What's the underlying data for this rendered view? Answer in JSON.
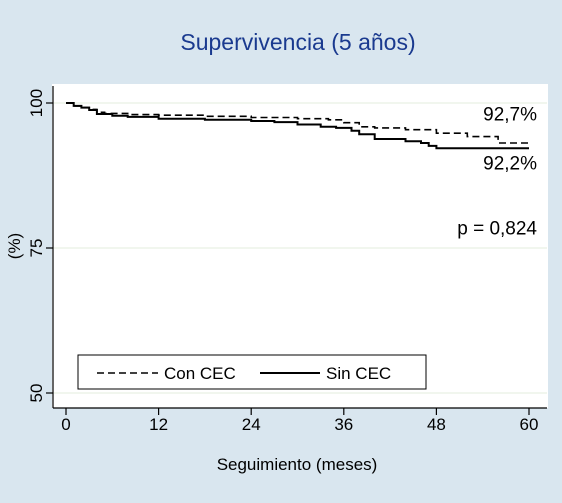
{
  "chart_data": {
    "type": "line",
    "title": "Supervivencia (5 años)",
    "xlabel": "Seguimiento (meses)",
    "ylabel": "(%)",
    "xlim": [
      0,
      60
    ],
    "ylim": [
      50,
      100
    ],
    "xticks": [
      0,
      12,
      24,
      36,
      48,
      60
    ],
    "yticks": [
      50,
      75,
      100
    ],
    "grid": "horizontal at y ticks",
    "legend_position": "bottom-left",
    "series": [
      {
        "name": "Con CEC",
        "style": "dashed",
        "color": "#000000",
        "x": [
          0,
          1,
          2,
          3,
          4,
          5,
          8,
          12,
          18,
          24,
          30,
          34,
          36,
          38,
          40,
          44,
          48,
          52,
          56,
          60
        ],
        "y": [
          100,
          99.5,
          99.2,
          98.9,
          98.4,
          98.2,
          98.0,
          97.9,
          97.7,
          97.5,
          97.3,
          97.1,
          96.6,
          95.9,
          95.7,
          95.4,
          94.8,
          94.2,
          93.1,
          92.7
        ]
      },
      {
        "name": "Sin CEC",
        "style": "solid",
        "color": "#000000",
        "x": [
          0,
          1,
          2,
          3,
          4,
          6,
          8,
          12,
          18,
          24,
          27,
          30,
          33,
          35,
          37,
          38,
          40,
          44,
          46,
          47,
          48,
          52,
          56,
          60
        ],
        "y": [
          100,
          99.5,
          99.2,
          98.8,
          98.1,
          97.8,
          97.6,
          97.3,
          97.1,
          96.9,
          96.7,
          96.3,
          95.9,
          95.7,
          95.2,
          94.6,
          93.8,
          93.4,
          93.1,
          92.6,
          92.2,
          92.2,
          92.2,
          92.2
        ]
      }
    ],
    "annotations": [
      {
        "text": "92,7%",
        "x": 60,
        "y": 97
      },
      {
        "text": "92,2%",
        "x": 60,
        "y": 88.5
      },
      {
        "text": "p = 0,824",
        "x": 60,
        "y": 77.3
      }
    ]
  },
  "colors": {
    "background": "#d9e6ef",
    "plot_area": "#ffffff",
    "title": "#1a3a8f",
    "axis": "#000000",
    "grid": "#e3ecdd"
  }
}
